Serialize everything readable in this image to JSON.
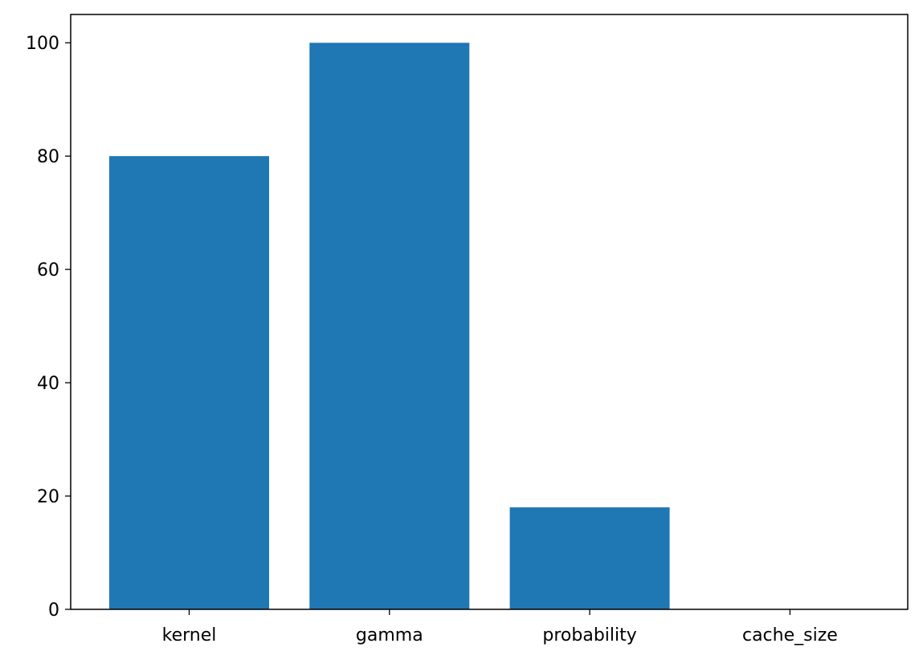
{
  "chart_data": {
    "type": "bar",
    "title": "",
    "xlabel": "",
    "ylabel": "",
    "categories": [
      "kernel",
      "gamma",
      "probability",
      "cache_size"
    ],
    "values": [
      80,
      100,
      18,
      0
    ],
    "ylim": [
      0,
      105
    ],
    "yticks": [
      0,
      20,
      40,
      60,
      80,
      100
    ],
    "bar_color": "#1f77b4",
    "grid": false,
    "legend": "none"
  }
}
